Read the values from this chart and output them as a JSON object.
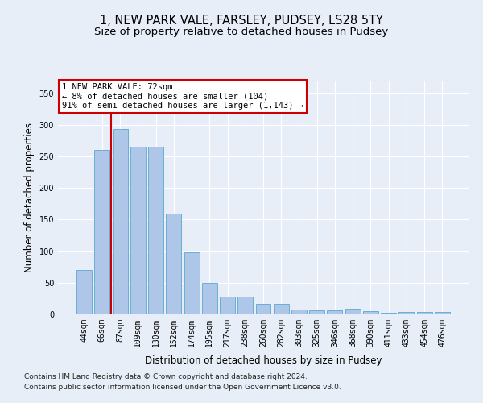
{
  "title": "1, NEW PARK VALE, FARSLEY, PUDSEY, LS28 5TY",
  "subtitle": "Size of property relative to detached houses in Pudsey",
  "xlabel": "Distribution of detached houses by size in Pudsey",
  "ylabel": "Number of detached properties",
  "categories": [
    "44sqm",
    "66sqm",
    "87sqm",
    "109sqm",
    "130sqm",
    "152sqm",
    "174sqm",
    "195sqm",
    "217sqm",
    "238sqm",
    "260sqm",
    "282sqm",
    "303sqm",
    "325sqm",
    "346sqm",
    "368sqm",
    "390sqm",
    "411sqm",
    "433sqm",
    "454sqm",
    "476sqm"
  ],
  "values": [
    70,
    260,
    293,
    265,
    265,
    160,
    98,
    50,
    28,
    28,
    17,
    17,
    8,
    7,
    7,
    9,
    5,
    3,
    4,
    4,
    4
  ],
  "bar_color": "#aec6e8",
  "bar_edge_color": "#6aaed6",
  "vline_x": 1.5,
  "vline_color": "#cc0000",
  "annotation_text": "1 NEW PARK VALE: 72sqm\n← 8% of detached houses are smaller (104)\n91% of semi-detached houses are larger (1,143) →",
  "annotation_box_color": "#ffffff",
  "annotation_box_edge_color": "#cc0000",
  "ylim": [
    0,
    370
  ],
  "yticks": [
    0,
    50,
    100,
    150,
    200,
    250,
    300,
    350
  ],
  "footer1": "Contains HM Land Registry data © Crown copyright and database right 2024.",
  "footer2": "Contains public sector information licensed under the Open Government Licence v3.0.",
  "background_color": "#e8eef8",
  "plot_bg_color": "#e8eef8",
  "grid_color": "#ffffff",
  "title_fontsize": 10.5,
  "subtitle_fontsize": 9.5,
  "axis_label_fontsize": 8.5,
  "tick_fontsize": 7,
  "annot_fontsize": 7.5,
  "footer_fontsize": 6.5
}
